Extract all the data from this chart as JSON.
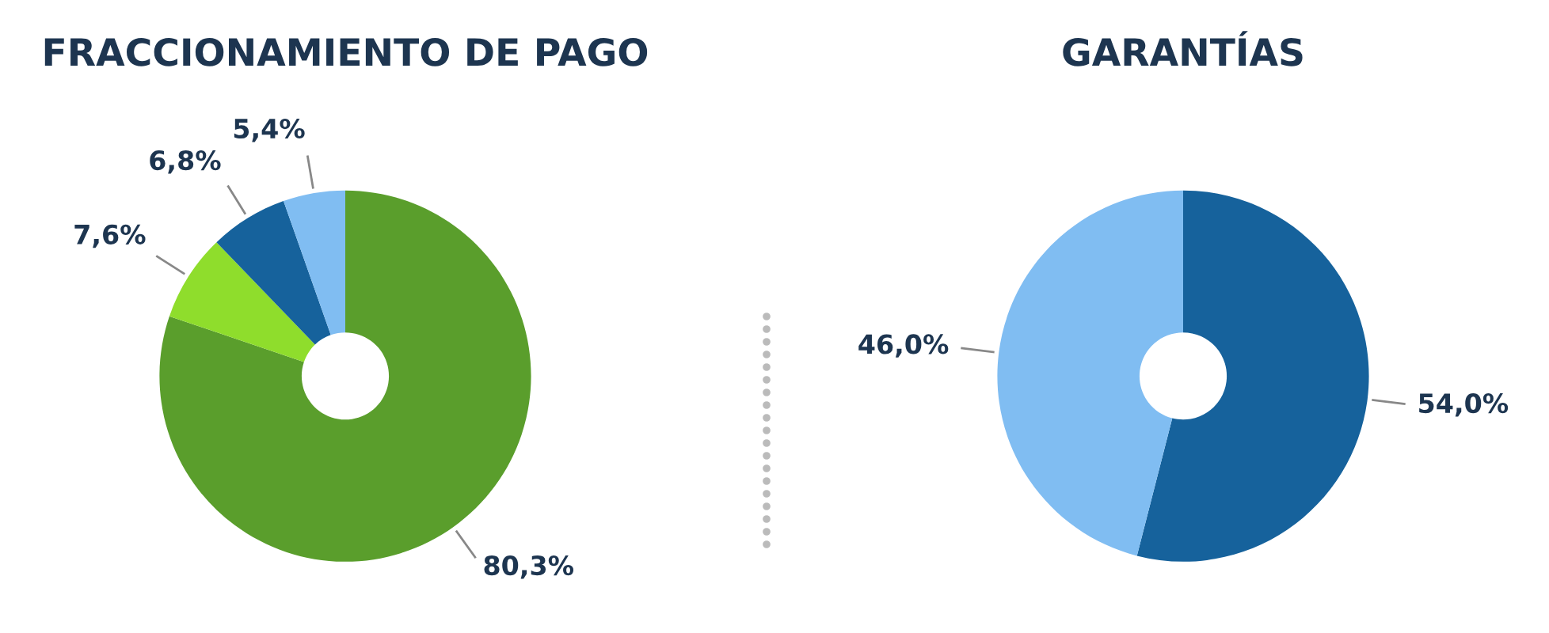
{
  "chart_data": [
    {
      "type": "donut",
      "title": "FRACCIONAMIENTO DE PAGO",
      "categories": [
        null,
        null,
        null,
        null
      ],
      "values": [
        80.3,
        7.6,
        6.8,
        5.4
      ],
      "value_labels": [
        "80,3%",
        "7,6%",
        "6,8%",
        "5,4%"
      ],
      "colors": [
        "#5a9e2c",
        "#8fdd2c",
        "#16629c",
        "#80bdf2"
      ],
      "legend": false
    },
    {
      "type": "donut",
      "title": "GARANTÍAS",
      "categories": [
        null,
        null
      ],
      "values": [
        54.0,
        46.0
      ],
      "value_labels": [
        "54,0%",
        "46,0%"
      ],
      "colors": [
        "#16629c",
        "#80bdf2"
      ],
      "legend": false
    }
  ]
}
